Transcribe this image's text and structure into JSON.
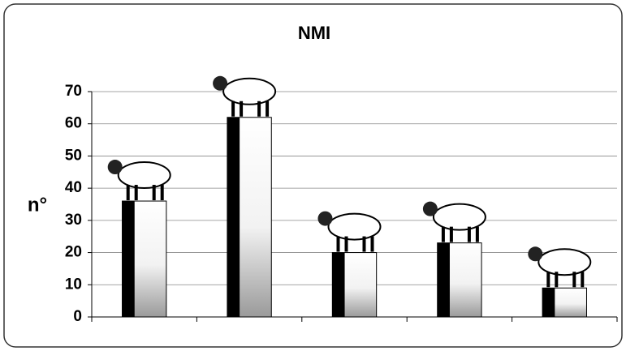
{
  "chart_data": {
    "type": "bar",
    "title": "NMI",
    "y_label": "n°",
    "categories": [
      null,
      null,
      null,
      null,
      null
    ],
    "values": [
      36,
      62,
      20,
      23,
      9
    ],
    "color": "#000000",
    "ylim": [
      0,
      70
    ],
    "yticks": [
      0,
      10,
      20,
      30,
      40,
      50,
      60,
      70
    ],
    "grid": true
  }
}
